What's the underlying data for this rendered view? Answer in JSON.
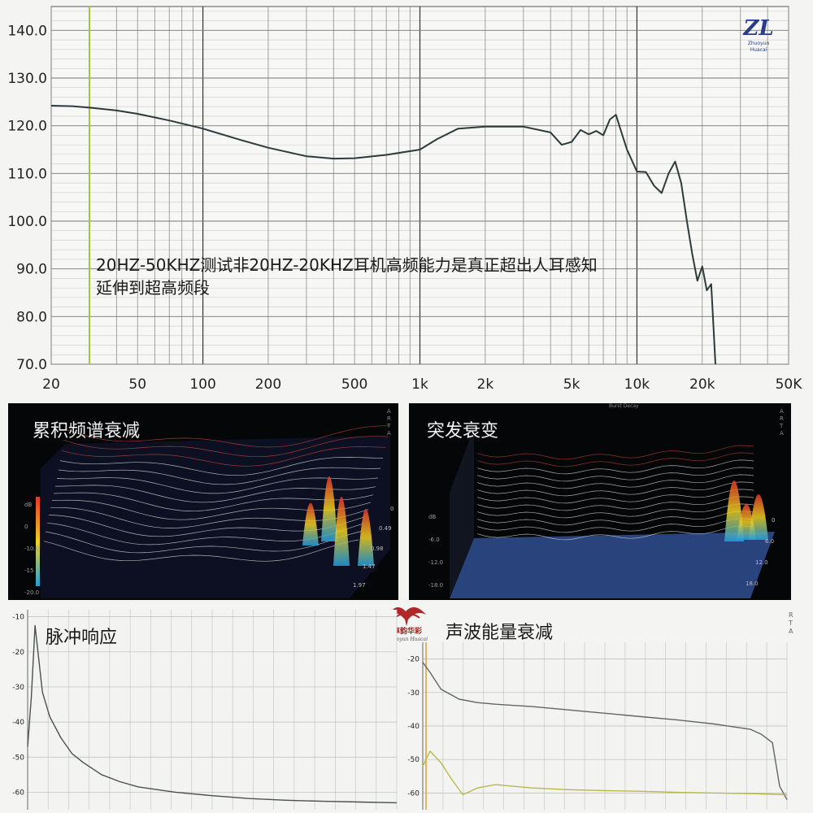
{
  "main_chart": {
    "annotation_line1": "20HZ-50KHZ测试非20HZ-20KHZ耳机高频能力是真正超出人耳感知",
    "annotation_line2": "延伸到超高频段",
    "logo_text": "ZL",
    "logo_sub": "Zhuoyun Huacai"
  },
  "waterfall_panel": {
    "title": "累积频谱衰减",
    "side_label": "ARTA",
    "left_ticks": [
      "dB",
      "0",
      "-10.0",
      "-15",
      "-20.0"
    ],
    "right_ticks": [
      "0",
      "0.49",
      "0.98",
      "1.47",
      "1.97"
    ],
    "colors": {
      "high": "#e8352a",
      "mid": "#f0d020",
      "low": "#20a0e0"
    }
  },
  "burst_panel": {
    "title": "突发衰变",
    "top_label": "Burst Decay",
    "side_label": "ARTA",
    "left_ticks": [
      "dB",
      "-6.0",
      "-12.0",
      "-18.0"
    ],
    "right_ticks": [
      "0",
      "6.0",
      "12.0",
      "18.0"
    ]
  },
  "center_logo": {
    "brand": "卓韵华彩",
    "sub": "Zhuoyun Huacai"
  },
  "impulse_panel": {
    "title": "脉冲响应",
    "y_ticks": [
      "-10",
      "-20",
      "-30",
      "-40",
      "-50",
      "-60"
    ]
  },
  "energy_panel": {
    "title": "声波能量衰减",
    "side_label": "RTA",
    "y_ticks": [
      "-20",
      "-30",
      "-40",
      "-50",
      "-60"
    ]
  },
  "chart_data": [
    {
      "type": "line",
      "title": "",
      "xlabel": "",
      "ylabel": "",
      "x_scale": "log",
      "xlim": [
        20,
        50000
      ],
      "ylim": [
        70,
        145
      ],
      "grid": true,
      "x_tick_labels": [
        {
          "v": 20,
          "t": "20"
        },
        {
          "v": 50,
          "t": "50"
        },
        {
          "v": 100,
          "t": "100"
        },
        {
          "v": 200,
          "t": "200"
        },
        {
          "v": 500,
          "t": "500"
        },
        {
          "v": 1000,
          "t": "1k"
        },
        {
          "v": 2000,
          "t": "2k"
        },
        {
          "v": 5000,
          "t": "5k"
        },
        {
          "v": 10000,
          "t": "10k"
        },
        {
          "v": 20000,
          "t": "20k"
        },
        {
          "v": 50000,
          "t": "50K"
        }
      ],
      "y_tick_labels": [
        {
          "v": 70,
          "t": "70.0"
        },
        {
          "v": 80,
          "t": "80.0"
        },
        {
          "v": 90,
          "t": "90.0"
        },
        {
          "v": 100,
          "t": "100.0"
        },
        {
          "v": 110,
          "t": "110.0"
        },
        {
          "v": 120,
          "t": "120.0"
        },
        {
          "v": 130,
          "t": "130.0"
        },
        {
          "v": 140,
          "t": "140.0"
        }
      ],
      "marker_x": 30,
      "series": [
        {
          "x": [
            20,
            25,
            30,
            40,
            50,
            70,
            100,
            150,
            200,
            300,
            400,
            500,
            700,
            1000,
            1200,
            1500,
            2000,
            3000,
            4000,
            4500,
            5000,
            5500,
            6000,
            6500,
            7000,
            7500,
            8000,
            8500,
            9000,
            10000,
            11000,
            12000,
            13000,
            14000,
            15000,
            16000,
            17000,
            18000,
            19000,
            20000,
            21000,
            22000,
            23000
          ],
          "y": [
            124.2,
            124.1,
            123.8,
            123.2,
            122.5,
            121.1,
            119.4,
            117.0,
            115.4,
            113.6,
            113.1,
            113.2,
            113.9,
            115.0,
            117.2,
            119.4,
            119.8,
            119.8,
            118.6,
            116.0,
            116.6,
            119.1,
            118.2,
            118.9,
            118.0,
            121.3,
            122.3,
            118.5,
            115.0,
            110.4,
            110.3,
            107.4,
            105.9,
            110.0,
            112.5,
            108.0,
            100.0,
            93.0,
            87.5,
            90.5,
            85.5,
            86.8,
            70.0
          ]
        }
      ]
    },
    {
      "type": "line",
      "title": "脉冲响应",
      "xlabel": "",
      "ylabel": "",
      "ylim": [
        -65,
        -8
      ],
      "grid": true,
      "series": [
        {
          "x": [
            0,
            0.01,
            0.02,
            0.04,
            0.06,
            0.09,
            0.12,
            0.15,
            0.2,
            0.25,
            0.3,
            0.4,
            0.5,
            0.6,
            0.7,
            0.8,
            0.9,
            1.0
          ],
          "y": [
            -47.0,
            -33.0,
            -12.5,
            -31.5,
            -38.5,
            -44.5,
            -49.0,
            -51.5,
            -55.0,
            -57.0,
            -58.5,
            -60.0,
            -61.0,
            -61.8,
            -62.3,
            -62.6,
            -62.8,
            -63.0
          ]
        }
      ]
    },
    {
      "type": "line",
      "title": "声波能量衰减",
      "xlabel": "",
      "ylabel": "",
      "ylim": [
        -65,
        -15
      ],
      "grid": true,
      "series": [
        {
          "x": [
            0,
            0.02,
            0.05,
            0.1,
            0.15,
            0.2,
            0.3,
            0.4,
            0.5,
            0.6,
            0.7,
            0.8,
            0.85,
            0.9,
            0.93,
            0.96,
            0.98,
            1.0
          ],
          "y": [
            -21.0,
            -24.0,
            -29.0,
            -32.0,
            -33.0,
            -33.5,
            -34.2,
            -35.2,
            -36.2,
            -37.2,
            -38.2,
            -39.4,
            -40.2,
            -41.0,
            -42.5,
            -45.0,
            -58.0,
            -62.0
          ]
        },
        {
          "x": [
            0,
            0.02,
            0.05,
            0.08,
            0.11,
            0.15,
            0.2,
            0.3,
            0.4,
            0.5,
            0.6,
            0.7,
            0.8,
            0.9,
            1.0
          ],
          "y": [
            -52.0,
            -47.5,
            -51.0,
            -56.0,
            -60.5,
            -58.5,
            -57.5,
            -58.5,
            -59.0,
            -59.3,
            -59.5,
            -59.8,
            -60.0,
            -60.2,
            -60.5
          ]
        }
      ]
    }
  ]
}
